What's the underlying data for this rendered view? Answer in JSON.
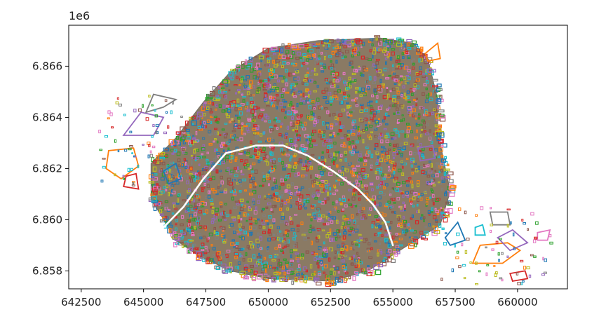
{
  "chart_data": {
    "type": "map-polygons",
    "title": "",
    "xlabel": "",
    "ylabel": "",
    "axis_offset_label": "1e6",
    "xlim": [
      642000,
      662000
    ],
    "ylim": [
      6857300,
      6867600
    ],
    "x_ticks": [
      642500,
      645000,
      647500,
      650000,
      652500,
      655000,
      657500,
      660000
    ],
    "x_tick_labels": [
      "642500",
      "645000",
      "647500",
      "650000",
      "652500",
      "655000",
      "657500",
      "660000"
    ],
    "y_ticks": [
      6858000,
      6860000,
      6862000,
      6864000,
      6866000
    ],
    "y_tick_labels": [
      "6.858",
      "6.860",
      "6.862",
      "6.864",
      "6.866"
    ],
    "grid": false,
    "legend": false,
    "palette": [
      "#1f77b4",
      "#ff7f0e",
      "#2ca02c",
      "#d62728",
      "#9467bd",
      "#8c564b",
      "#e377c2",
      "#7f7f7f",
      "#bcbd22",
      "#17becf"
    ],
    "outer_boundary": [
      [
        646000,
        6859700
      ],
      [
        645300,
        6860800
      ],
      [
        645300,
        6862200
      ],
      [
        646300,
        6863200
      ],
      [
        647400,
        6864600
      ],
      [
        648500,
        6865800
      ],
      [
        650000,
        6866700
      ],
      [
        652000,
        6867000
      ],
      [
        654500,
        6867100
      ],
      [
        655800,
        6866900
      ],
      [
        656400,
        6866300
      ],
      [
        656800,
        6864700
      ],
      [
        656800,
        6863500
      ],
      [
        657000,
        6862500
      ],
      [
        657300,
        6861100
      ],
      [
        656900,
        6859800
      ],
      [
        655600,
        6859000
      ],
      [
        654000,
        6858000
      ],
      [
        652500,
        6857600
      ],
      [
        650000,
        6857700
      ],
      [
        648500,
        6858000
      ],
      [
        647200,
        6858600
      ],
      [
        646300,
        6859200
      ]
    ],
    "seine_river": [
      [
        645800,
        6859700
      ],
      [
        646600,
        6860500
      ],
      [
        647400,
        6861600
      ],
      [
        648300,
        6862600
      ],
      [
        649500,
        6862900
      ],
      [
        650600,
        6862900
      ],
      [
        651600,
        6862500
      ],
      [
        652600,
        6861900
      ],
      [
        653600,
        6861200
      ],
      [
        654200,
        6860600
      ],
      [
        654700,
        6859900
      ],
      [
        655000,
        6859000
      ]
    ],
    "west_polygons": [
      [
        [
          643600,
          6862700
        ],
        [
          644600,
          6862800
        ],
        [
          644800,
          6862100
        ],
        [
          644100,
          6861600
        ],
        [
          643500,
          6862000
        ]
      ],
      [
        [
          644200,
          6863300
        ],
        [
          644900,
          6864200
        ],
        [
          645800,
          6864000
        ],
        [
          645400,
          6863300
        ]
      ],
      [
        [
          645100,
          6864200
        ],
        [
          645800,
          6864400
        ],
        [
          646300,
          6864700
        ],
        [
          645400,
          6864900
        ]
      ],
      [
        [
          645800,
          6861900
        ],
        [
          646300,
          6862200
        ],
        [
          646500,
          6861600
        ],
        [
          646000,
          6861400
        ]
      ],
      [
        [
          644300,
          6861700
        ],
        [
          644700,
          6861800
        ],
        [
          644800,
          6861200
        ],
        [
          644200,
          6861300
        ]
      ]
    ],
    "east_polygons": [
      [
        [
          658200,
          6858300
        ],
        [
          659400,
          6858300
        ],
        [
          660100,
          6858800
        ],
        [
          659600,
          6859100
        ],
        [
          658500,
          6859000
        ]
      ],
      [
        [
          659200,
          6859300
        ],
        [
          659800,
          6859600
        ],
        [
          660400,
          6859100
        ],
        [
          659700,
          6858800
        ]
      ],
      [
        [
          658900,
          6860300
        ],
        [
          659600,
          6860300
        ],
        [
          659700,
          6859800
        ],
        [
          659000,
          6859800
        ]
      ],
      [
        [
          657100,
          6859300
        ],
        [
          657600,
          6859900
        ],
        [
          657900,
          6859200
        ],
        [
          657300,
          6859000
        ]
      ],
      [
        [
          659700,
          6857900
        ],
        [
          660300,
          6858000
        ],
        [
          660400,
          6857700
        ],
        [
          659800,
          6857600
        ]
      ],
      [
        [
          660800,
          6859500
        ],
        [
          661300,
          6859600
        ],
        [
          661200,
          6859200
        ],
        [
          660800,
          6859200
        ]
      ],
      [
        [
          658300,
          6859700
        ],
        [
          658600,
          6859800
        ],
        [
          658700,
          6859400
        ],
        [
          658300,
          6859400
        ]
      ]
    ],
    "north_east_polygons": [
      [
        [
          656300,
          6866500
        ],
        [
          656800,
          6866900
        ],
        [
          656900,
          6866300
        ],
        [
          656400,
          6866200
        ]
      ],
      [
        [
          656000,
          6862800
        ],
        [
          656600,
          6862900
        ],
        [
          656700,
          6862400
        ],
        [
          656100,
          6862300
        ]
      ]
    ]
  }
}
